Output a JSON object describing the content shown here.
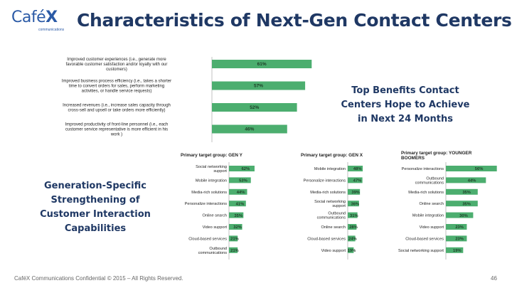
{
  "header": {
    "logo_text": "Café",
    "logo_x": "X",
    "logo_sub": "communications",
    "title": "Characteristics of Next-Gen Contact Centers"
  },
  "callouts": {
    "top": [
      "Top Benefits Contact",
      "Centers Hope to Achieve",
      "in Next 24 Months"
    ],
    "left": [
      "Generation-Specific",
      "Strengthening of",
      "Customer Interaction",
      "Capabilities"
    ]
  },
  "footer": {
    "text": "CaféX Communications Confidential © 2015 – All Rights Reserved.",
    "page": "46"
  },
  "colors": {
    "bar": "#4cae6f",
    "bar_light": "#6cc08a",
    "title": "#1f3864"
  },
  "chart_data": [
    {
      "type": "bar",
      "orientation": "horizontal",
      "title": "",
      "categories": [
        [
          "Improved customer experiences (i.e., generate more",
          "favorable customer satisfaction and/or loyalty with our",
          "customers)"
        ],
        [
          "Improved business process efficiency (i.e., takes a shorter",
          "time to convert orders for sales, perform marketing",
          "activities, or handle service requests)"
        ],
        [
          "Increased revenues (i.e., increase sales capacity through",
          "cross-sell and upsell or take orders more efficiently)"
        ],
        [
          "Improved productivity of front-line personnel (i.e., each",
          "customer service representative is more efficient in his",
          "work )"
        ]
      ],
      "values": [
        61,
        57,
        52,
        46
      ],
      "value_labels": [
        "61%",
        "57%",
        "52%",
        "46%"
      ]
    },
    {
      "type": "bar",
      "orientation": "horizontal",
      "title": "Primary target group: GEN Y",
      "categories": [
        [
          "Social networking",
          "support"
        ],
        [
          "Mobile integration"
        ],
        [
          "Media-rich solutions"
        ],
        [
          "Personalize interactions"
        ],
        [
          "Online search"
        ],
        [
          "Video support"
        ],
        [
          "Cloud-based services"
        ],
        [
          "Outbound",
          "communications"
        ]
      ],
      "values": [
        62,
        53,
        44,
        41,
        35,
        32,
        21,
        21
      ],
      "value_labels": [
        "62%",
        "53%",
        "44%",
        "41%",
        "35%",
        "32%",
        "21%",
        "21%"
      ]
    },
    {
      "type": "bar",
      "orientation": "horizontal",
      "title": "Primary target group: GEN X",
      "categories": [
        [
          "Mobile integration"
        ],
        [
          "Personalize interactions"
        ],
        [
          "Media-rich solutions"
        ],
        [
          "Social networking",
          "support"
        ],
        [
          "Outbound",
          "communications"
        ],
        [
          "Online search"
        ],
        [
          "Cloud-based services"
        ],
        [
          "Video support"
        ]
      ],
      "values": [
        48,
        47,
        39,
        36,
        31,
        28,
        24,
        19
      ],
      "value_labels": [
        "48%",
        "47%",
        "39%",
        "36%",
        "31%",
        "28%",
        "24%",
        "19%"
      ]
    },
    {
      "type": "bar",
      "orientation": "horizontal",
      "title": "Primary target group: YOUNGER BOOMERS",
      "categories": [
        [
          "Personalize interactions"
        ],
        [
          "Outbound",
          "communications"
        ],
        [
          "Media-rich solutions"
        ],
        [
          "Online search"
        ],
        [
          "Mobile integration"
        ],
        [
          "Video support"
        ],
        [
          "Cloud-based services"
        ],
        [
          "Social networking support"
        ]
      ],
      "values": [
        56,
        44,
        35,
        35,
        30,
        23,
        23,
        19
      ],
      "value_labels": [
        "56%",
        "44%",
        "35%",
        "35%",
        "30%",
        "23%",
        "23%",
        "19%"
      ]
    }
  ]
}
